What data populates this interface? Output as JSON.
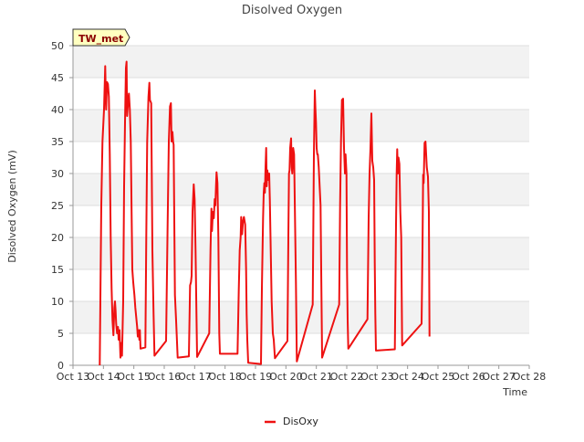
{
  "chart_data": {
    "type": "line",
    "title": "Disolved Oxygen",
    "xlabel": "Time",
    "ylabel": "Disolved Oxygen (mV)",
    "site_tag": "TW_met",
    "ylim": [
      0,
      50
    ],
    "yticks": [
      0,
      5,
      10,
      15,
      20,
      25,
      30,
      35,
      40,
      45,
      50
    ],
    "xlim": [
      13,
      28
    ],
    "xticks": [
      13,
      14,
      15,
      16,
      17,
      18,
      19,
      20,
      21,
      22,
      23,
      24,
      25,
      26,
      27,
      28
    ],
    "xtick_labels": [
      "Oct 13",
      "Oct 14",
      "Oct 15",
      "Oct 16",
      "Oct 17",
      "Oct 18",
      "Oct 19",
      "Oct 20",
      "Oct 21",
      "Oct 22",
      "Oct 23",
      "Oct 24",
      "Oct 25",
      "Oct 26",
      "Oct 27",
      "Oct 28"
    ],
    "grid": true,
    "legend_position": "bottom-center",
    "series": [
      {
        "name": "DisOxy",
        "color": "#ee1111",
        "points": [
          [
            13.88,
            0
          ],
          [
            13.93,
            25
          ],
          [
            13.97,
            35
          ],
          [
            14.02,
            40
          ],
          [
            14.06,
            46.8
          ],
          [
            14.09,
            40
          ],
          [
            14.12,
            44.3
          ],
          [
            14.15,
            44
          ],
          [
            14.18,
            42
          ],
          [
            14.21,
            33
          ],
          [
            14.24,
            20
          ],
          [
            14.27,
            12
          ],
          [
            14.3,
            7
          ],
          [
            14.33,
            4.7
          ],
          [
            14.36,
            9
          ],
          [
            14.38,
            10
          ],
          [
            14.4,
            8.5
          ],
          [
            14.42,
            6.5
          ],
          [
            14.45,
            5
          ],
          [
            14.48,
            6
          ],
          [
            14.5,
            4
          ],
          [
            14.53,
            5.5
          ],
          [
            14.56,
            1.2
          ],
          [
            14.58,
            3.5
          ],
          [
            14.61,
            1.5
          ],
          [
            14.65,
            10
          ],
          [
            14.68,
            28
          ],
          [
            14.71,
            38
          ],
          [
            14.74,
            46.5
          ],
          [
            14.76,
            47.5
          ],
          [
            14.78,
            39
          ],
          [
            14.81,
            41
          ],
          [
            14.84,
            42.5
          ],
          [
            14.87,
            40
          ],
          [
            14.9,
            35
          ],
          [
            14.93,
            23
          ],
          [
            14.95,
            15
          ],
          [
            14.98,
            13
          ],
          [
            15.02,
            11
          ],
          [
            15.05,
            9
          ],
          [
            15.08,
            7.5
          ],
          [
            15.11,
            6
          ],
          [
            15.13,
            4.5
          ],
          [
            15.16,
            5.5
          ],
          [
            15.18,
            4
          ],
          [
            15.2,
            5.5
          ],
          [
            15.22,
            2.6
          ],
          [
            15.38,
            2.8
          ],
          [
            15.41,
            20
          ],
          [
            15.44,
            35
          ],
          [
            15.48,
            42
          ],
          [
            15.51,
            44.2
          ],
          [
            15.53,
            41.5
          ],
          [
            15.57,
            41
          ],
          [
            15.61,
            18
          ],
          [
            15.65,
            8
          ],
          [
            15.68,
            1.5
          ],
          [
            16.06,
            3.8
          ],
          [
            16.11,
            22
          ],
          [
            16.15,
            35
          ],
          [
            16.19,
            40.5
          ],
          [
            16.22,
            41
          ],
          [
            16.24,
            35
          ],
          [
            16.27,
            36.5
          ],
          [
            16.29,
            35
          ],
          [
            16.31,
            34.5
          ],
          [
            16.35,
            11
          ],
          [
            16.39,
            7
          ],
          [
            16.44,
            1.2
          ],
          [
            16.81,
            1.4
          ],
          [
            16.85,
            12.5
          ],
          [
            16.88,
            13
          ],
          [
            16.9,
            14
          ],
          [
            16.93,
            24
          ],
          [
            16.97,
            28.3
          ],
          [
            17.0,
            26
          ],
          [
            17.03,
            18
          ],
          [
            17.06,
            8
          ],
          [
            17.08,
            1.3
          ],
          [
            17.48,
            5
          ],
          [
            17.52,
            18
          ],
          [
            17.55,
            24.5
          ],
          [
            17.57,
            21
          ],
          [
            17.6,
            24
          ],
          [
            17.63,
            23
          ],
          [
            17.66,
            26
          ],
          [
            17.68,
            25
          ],
          [
            17.7,
            28
          ],
          [
            17.72,
            30.2
          ],
          [
            17.75,
            28.5
          ],
          [
            17.78,
            20
          ],
          [
            17.81,
            5
          ],
          [
            17.83,
            1.8
          ],
          [
            18.41,
            1.8
          ],
          [
            18.45,
            12
          ],
          [
            18.48,
            18
          ],
          [
            18.51,
            20
          ],
          [
            18.53,
            23.2
          ],
          [
            18.56,
            20.5
          ],
          [
            18.59,
            22.5
          ],
          [
            18.62,
            23.2
          ],
          [
            18.66,
            22
          ],
          [
            18.69,
            15
          ],
          [
            18.71,
            8
          ],
          [
            18.73,
            4
          ],
          [
            18.76,
            0.4
          ],
          [
            19.18,
            0.2
          ],
          [
            19.21,
            12
          ],
          [
            19.25,
            23
          ],
          [
            19.27,
            27
          ],
          [
            19.29,
            28.5
          ],
          [
            19.31,
            27
          ],
          [
            19.33,
            31
          ],
          [
            19.35,
            34
          ],
          [
            19.37,
            28
          ],
          [
            19.39,
            30.5
          ],
          [
            19.42,
            29
          ],
          [
            19.45,
            30
          ],
          [
            19.47,
            26
          ],
          [
            19.5,
            18
          ],
          [
            19.53,
            10
          ],
          [
            19.57,
            5
          ],
          [
            19.6,
            4
          ],
          [
            19.64,
            1.1
          ],
          [
            20.05,
            3.8
          ],
          [
            20.08,
            20
          ],
          [
            20.1,
            30
          ],
          [
            20.12,
            30.5
          ],
          [
            20.14,
            34
          ],
          [
            20.17,
            35.5
          ],
          [
            20.19,
            31
          ],
          [
            20.21,
            30
          ],
          [
            20.24,
            34
          ],
          [
            20.27,
            33
          ],
          [
            20.3,
            23
          ],
          [
            20.33,
            13
          ],
          [
            20.36,
            0.6
          ],
          [
            20.88,
            9.5
          ],
          [
            20.92,
            33
          ],
          [
            20.95,
            43
          ],
          [
            20.97,
            40
          ],
          [
            20.99,
            38
          ],
          [
            21.01,
            34
          ],
          [
            21.03,
            33
          ],
          [
            21.05,
            33
          ],
          [
            21.08,
            31
          ],
          [
            21.11,
            28
          ],
          [
            21.14,
            25
          ],
          [
            21.16,
            15
          ],
          [
            21.19,
            1.2
          ],
          [
            21.75,
            9.5
          ],
          [
            21.78,
            25
          ],
          [
            21.81,
            35
          ],
          [
            21.84,
            41.5
          ],
          [
            21.88,
            41.7
          ],
          [
            21.91,
            34
          ],
          [
            21.94,
            30
          ],
          [
            21.96,
            33
          ],
          [
            21.99,
            30
          ],
          [
            22.01,
            15
          ],
          [
            22.03,
            7
          ],
          [
            22.05,
            2.6
          ],
          [
            22.68,
            7.2
          ],
          [
            22.72,
            23
          ],
          [
            22.75,
            30
          ],
          [
            22.78,
            34
          ],
          [
            22.81,
            39.4
          ],
          [
            22.84,
            32
          ],
          [
            22.87,
            31
          ],
          [
            22.9,
            29
          ],
          [
            22.92,
            16
          ],
          [
            22.94,
            8
          ],
          [
            22.96,
            2.3
          ],
          [
            23.58,
            2.5
          ],
          [
            23.62,
            22
          ],
          [
            23.64,
            30
          ],
          [
            23.66,
            33.8
          ],
          [
            23.68,
            30
          ],
          [
            23.7,
            32.5
          ],
          [
            23.73,
            31.5
          ],
          [
            23.76,
            24
          ],
          [
            23.79,
            20
          ],
          [
            23.82,
            3.1
          ],
          [
            24.46,
            6.5
          ],
          [
            24.49,
            18
          ],
          [
            24.51,
            29.8
          ],
          [
            24.53,
            28.5
          ],
          [
            24.56,
            34.8
          ],
          [
            24.59,
            35
          ],
          [
            24.63,
            31
          ],
          [
            24.67,
            29.5
          ],
          [
            24.7,
            24
          ],
          [
            24.72,
            4.5
          ]
        ]
      }
    ]
  }
}
